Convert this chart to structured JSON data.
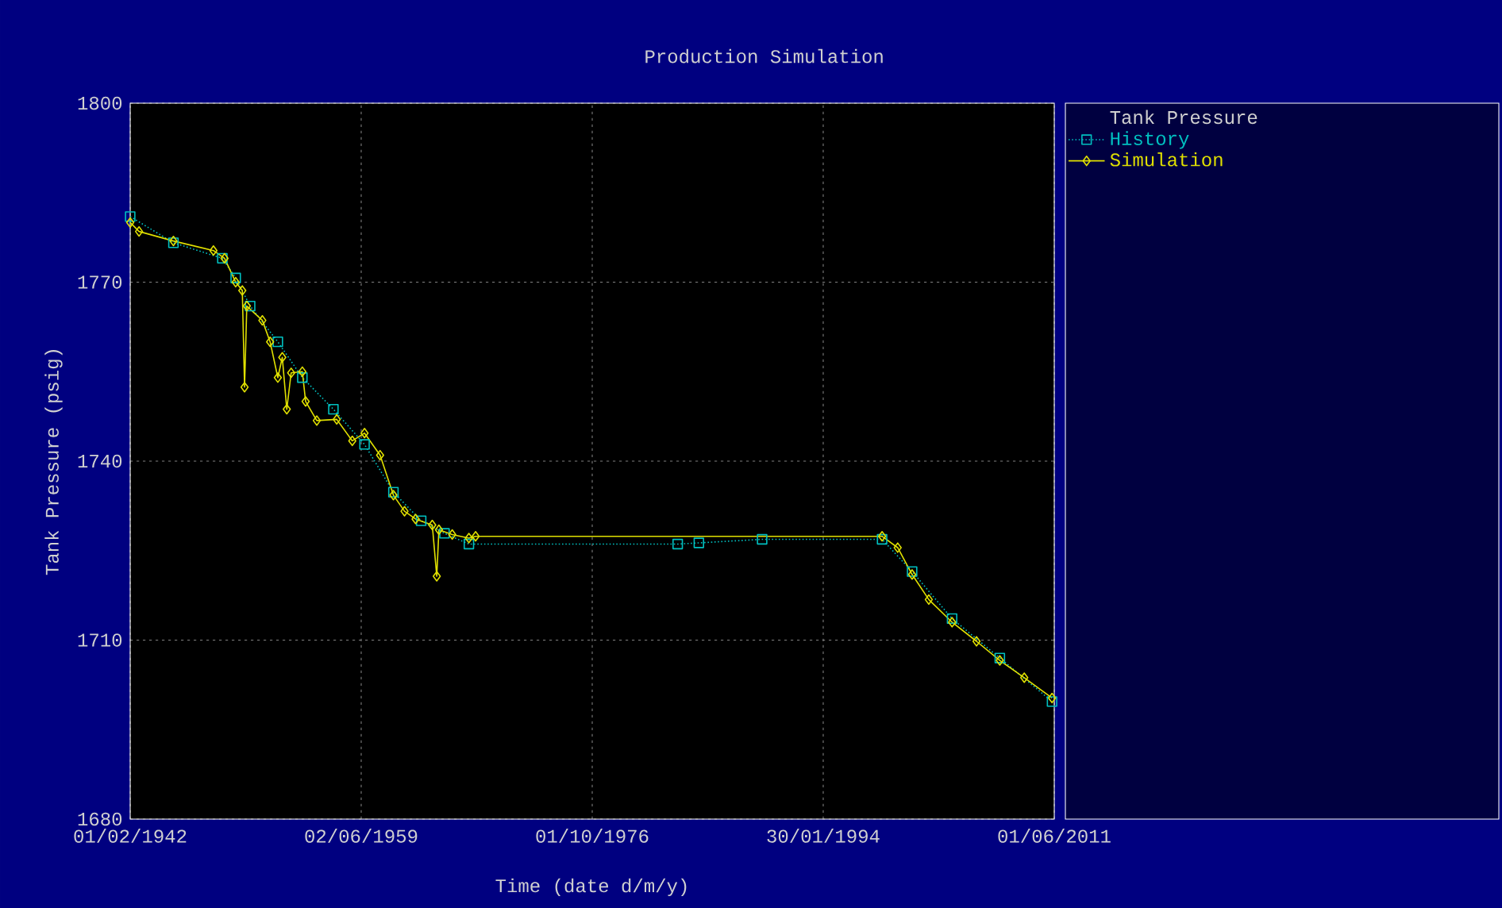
{
  "chart_data": {
    "type": "line",
    "title": "Production Simulation",
    "xlabel": "Time (date d/m/y)",
    "ylabel": "Tank Pressure (psig)",
    "legend_title": "Tank Pressure",
    "xlim": [
      "1942-02-01",
      "2011-06-01"
    ],
    "xticks": [
      {
        "value": "1942-02-01",
        "label": "01/02/1942"
      },
      {
        "value": "1959-06-02",
        "label": "02/06/1959"
      },
      {
        "value": "1976-10-01",
        "label": "01/10/1976"
      },
      {
        "value": "1994-01-30",
        "label": "30/01/1994"
      },
      {
        "value": "2011-06-01",
        "label": "01/06/2011"
      }
    ],
    "ylim": [
      1680,
      1800
    ],
    "yticks": [
      1680,
      1710,
      1740,
      1770,
      1800
    ],
    "grid": true,
    "legend": "right",
    "series": [
      {
        "name": "History",
        "color": "#00c0c0",
        "line_style": "dotted",
        "marker": "square",
        "x": [
          "1942-02",
          "1945-05",
          "1949-01",
          "1950-01",
          "1951-02",
          "1953-03",
          "1955-01",
          "1957-05",
          "1959-09",
          "1961-11",
          "1963-12",
          "1965-09",
          "1967-07",
          "1983-03",
          "1984-10",
          "1989-07",
          "1998-07",
          "2000-10",
          "2003-10",
          "2007-05",
          "2011-04"
        ],
        "values": [
          1781,
          1776.6,
          1774,
          1770.7,
          1766,
          1760,
          1754,
          1748.7,
          1742.8,
          1734.8,
          1730,
          1727.9,
          1726.1,
          1726.1,
          1726.3,
          1726.9,
          1726.9,
          1721.5,
          1713.6,
          1707,
          1699.7
        ]
      },
      {
        "name": "Simulation",
        "color": "#e0e000",
        "line_style": "solid",
        "marker": "diamond",
        "x": [
          "1942-02",
          "1942-10",
          "1945-05",
          "1948-05",
          "1949-03",
          "1950-01",
          "1950-07",
          "1950-09",
          "1950-11",
          "1952-01",
          "1952-08",
          "1953-03",
          "1953-07",
          "1953-11",
          "1954-03",
          "1955-01",
          "1955-04",
          "1956-02",
          "1957-08",
          "1958-10",
          "1959-09",
          "1960-11",
          "1961-11",
          "1962-09",
          "1963-07",
          "1964-10",
          "1965-02",
          "1965-04",
          "1966-04",
          "1967-07",
          "1968-01",
          "1998-07",
          "1999-09",
          "2000-10",
          "2002-01",
          "2003-10",
          "2005-08",
          "2007-05",
          "2009-03",
          "2011-04"
        ],
        "values": [
          1780,
          1778.5,
          1776.9,
          1775.3,
          1774,
          1770,
          1768.6,
          1752.4,
          1766,
          1763.6,
          1760,
          1754,
          1757.4,
          1748.7,
          1754.8,
          1755,
          1750,
          1746.8,
          1747,
          1743.4,
          1744.7,
          1741,
          1734.3,
          1731.6,
          1730.3,
          1729.3,
          1720.7,
          1728.5,
          1727.7,
          1727.1,
          1727.4,
          1727.4,
          1725.5,
          1721,
          1716.8,
          1713,
          1709.8,
          1706.6,
          1703.7,
          1700.3
        ]
      }
    ]
  }
}
